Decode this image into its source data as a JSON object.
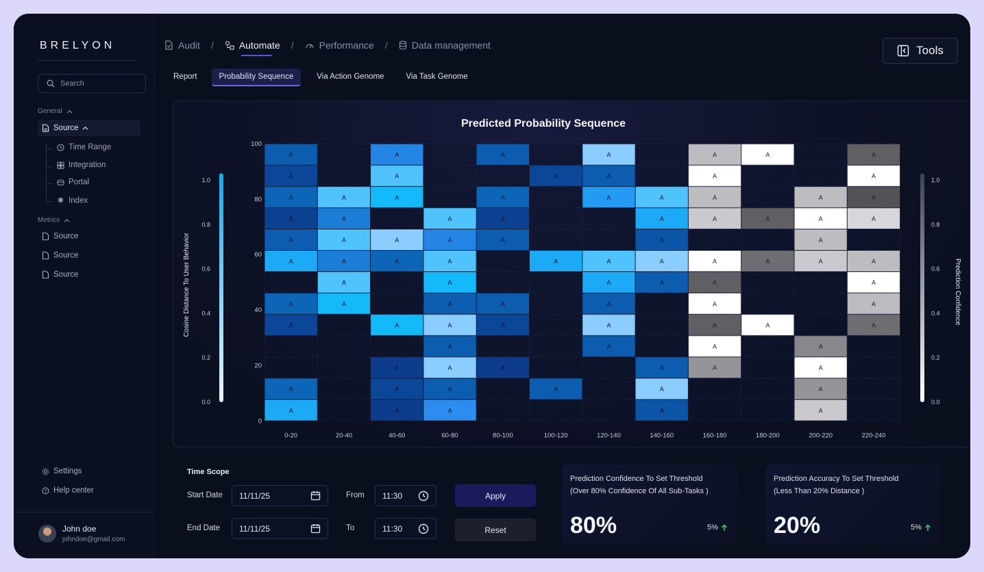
{
  "brand": "BRELYON",
  "search": {
    "placeholder": "Search"
  },
  "sidebar": {
    "general_label": "General",
    "source_label": "Source",
    "sub_items": [
      {
        "label": "Time Range",
        "icon": "clock-icon"
      },
      {
        "label": "Integration",
        "icon": "grid-icon"
      },
      {
        "label": "Portal",
        "icon": "portal-icon"
      },
      {
        "label": "Index",
        "icon": "asterisk-icon"
      }
    ],
    "metrics_label": "Metrics",
    "metric_items": [
      {
        "label": "Source"
      },
      {
        "label": "Source"
      },
      {
        "label": "Source"
      }
    ],
    "settings_label": "Settings",
    "help_label": "Help center"
  },
  "user": {
    "name": "John doe",
    "email": "johndoe@gmail.com"
  },
  "breadcrumbs": [
    {
      "label": "Audit",
      "icon": "file-icon"
    },
    {
      "label": "Automate",
      "icon": "flow-icon"
    },
    {
      "label": "Performance",
      "icon": "gauge-icon"
    },
    {
      "label": "Data management",
      "icon": "database-icon"
    }
  ],
  "tools_label": "Tools",
  "subtabs": [
    {
      "label": "Report"
    },
    {
      "label": "Probability Sequence"
    },
    {
      "label": "Via Action Genome"
    },
    {
      "label": "Via Task Genome"
    }
  ],
  "chart_data": {
    "type": "heatmap",
    "title": "Predicted Probability Sequence",
    "x_categories": [
      "0-20",
      "20-40",
      "40-60",
      "60-80",
      "80-100",
      "100-120",
      "120-140",
      "140-160",
      "160-180",
      "180-200",
      "200-220",
      "220-240"
    ],
    "y_ticks": [
      0,
      20,
      40,
      60,
      80,
      100
    ],
    "ylim": [
      0,
      100
    ],
    "rows": 13,
    "cell_label": "A",
    "left_colorbar": {
      "label": "Cosine Distance To User Behavior",
      "ticks": [
        "1.0",
        "0.8",
        "0.6",
        "0.4",
        "0.2",
        "0.0"
      ]
    },
    "right_colorbar": {
      "label": "Prediction Confidence",
      "ticks": [
        "1.0",
        "0.8",
        "0.6",
        "0.4",
        "0.2",
        "0.0"
      ]
    },
    "cells": [
      {
        "col": 0,
        "row": 0,
        "v": 0.45
      },
      {
        "col": 0,
        "row": 1,
        "v": 0.3
      },
      {
        "col": 0,
        "row": 2,
        "v": 0.5
      },
      {
        "col": 0,
        "row": 3,
        "v": 0.25
      },
      {
        "col": 0,
        "row": 4,
        "v": 0.45
      },
      {
        "col": 0,
        "row": 5,
        "v": 0.85
      },
      {
        "col": 0,
        "row": 7,
        "v": 0.5
      },
      {
        "col": 0,
        "row": 8,
        "v": 0.3
      },
      {
        "col": 0,
        "row": 11,
        "v": 0.5
      },
      {
        "col": 0,
        "row": 12,
        "v": 0.85
      },
      {
        "col": 1,
        "row": 2,
        "v": 0.95
      },
      {
        "col": 1,
        "row": 3,
        "v": 0.65
      },
      {
        "col": 1,
        "row": 4,
        "v": 0.95
      },
      {
        "col": 1,
        "row": 5,
        "v": 0.65
      },
      {
        "col": 1,
        "row": 6,
        "v": 0.95
      },
      {
        "col": 1,
        "row": 7,
        "v": 0.9
      },
      {
        "col": 2,
        "row": 0,
        "v": 0.7
      },
      {
        "col": 2,
        "row": 1,
        "v": 0.95
      },
      {
        "col": 2,
        "row": 2,
        "v": 0.9
      },
      {
        "col": 2,
        "row": 4,
        "v": 1.0
      },
      {
        "col": 2,
        "row": 5,
        "v": 0.5
      },
      {
        "col": 2,
        "row": 8,
        "v": 0.9
      },
      {
        "col": 2,
        "row": 10,
        "v": 0.2
      },
      {
        "col": 2,
        "row": 11,
        "v": 0.3
      },
      {
        "col": 2,
        "row": 12,
        "v": 0.2
      },
      {
        "col": 3,
        "row": 3,
        "v": 0.95
      },
      {
        "col": 3,
        "row": 4,
        "v": 0.7
      },
      {
        "col": 3,
        "row": 5,
        "v": 0.95
      },
      {
        "col": 3,
        "row": 6,
        "v": 0.9
      },
      {
        "col": 3,
        "row": 7,
        "v": 0.45
      },
      {
        "col": 3,
        "row": 8,
        "v": 1.0
      },
      {
        "col": 3,
        "row": 9,
        "v": 0.45
      },
      {
        "col": 3,
        "row": 10,
        "v": 1.0
      },
      {
        "col": 3,
        "row": 11,
        "v": 0.45
      },
      {
        "col": 3,
        "row": 12,
        "v": 0.75
      },
      {
        "col": 4,
        "row": 0,
        "v": 0.45
      },
      {
        "col": 4,
        "row": 2,
        "v": 0.5
      },
      {
        "col": 4,
        "row": 3,
        "v": 0.25
      },
      {
        "col": 4,
        "row": 4,
        "v": 0.45
      },
      {
        "col": 4,
        "row": 7,
        "v": 0.45
      },
      {
        "col": 4,
        "row": 8,
        "v": 0.3
      },
      {
        "col": 4,
        "row": 10,
        "v": 0.2
      },
      {
        "col": 5,
        "row": 1,
        "v": 0.3
      },
      {
        "col": 5,
        "row": 5,
        "v": 0.85
      },
      {
        "col": 5,
        "row": 11,
        "v": 0.45
      },
      {
        "col": 6,
        "row": 0,
        "v": 1.0
      },
      {
        "col": 6,
        "row": 1,
        "v": 0.45
      },
      {
        "col": 6,
        "row": 2,
        "v": 0.8
      },
      {
        "col": 6,
        "row": 5,
        "v": 0.95
      },
      {
        "col": 6,
        "row": 6,
        "v": 0.85
      },
      {
        "col": 6,
        "row": 7,
        "v": 0.45
      },
      {
        "col": 6,
        "row": 8,
        "v": 1.0
      },
      {
        "col": 6,
        "row": 9,
        "v": 0.45
      },
      {
        "col": 7,
        "row": 2,
        "v": 0.95
      },
      {
        "col": 7,
        "row": 3,
        "v": 0.85
      },
      {
        "col": 7,
        "row": 4,
        "v": 0.4
      },
      {
        "col": 7,
        "row": 5,
        "v": 1.0
      },
      {
        "col": 7,
        "row": 6,
        "v": 0.45
      },
      {
        "col": 7,
        "row": 10,
        "v": 0.45
      },
      {
        "col": 7,
        "row": 11,
        "v": 1.0
      },
      {
        "col": 7,
        "row": 12,
        "v": 0.4
      }
    ],
    "gray_cells": [
      {
        "col": 8,
        "row": 0,
        "v": 0.75
      },
      {
        "col": 8,
        "row": 1,
        "v": 1.0
      },
      {
        "col": 8,
        "row": 2,
        "v": 0.75
      },
      {
        "col": 8,
        "row": 3,
        "v": 0.8
      },
      {
        "col": 8,
        "row": 5,
        "v": 1.0
      },
      {
        "col": 8,
        "row": 6,
        "v": 0.4
      },
      {
        "col": 8,
        "row": 7,
        "v": 1.0
      },
      {
        "col": 8,
        "row": 8,
        "v": 0.4
      },
      {
        "col": 8,
        "row": 9,
        "v": 1.0
      },
      {
        "col": 8,
        "row": 10,
        "v": 0.6
      },
      {
        "col": 9,
        "row": 0,
        "v": 1.0
      },
      {
        "col": 9,
        "row": 3,
        "v": 0.4
      },
      {
        "col": 9,
        "row": 5,
        "v": 0.45
      },
      {
        "col": 9,
        "row": 8,
        "v": 1.0
      },
      {
        "col": 10,
        "row": 2,
        "v": 0.75
      },
      {
        "col": 10,
        "row": 3,
        "v": 1.0
      },
      {
        "col": 10,
        "row": 4,
        "v": 0.75
      },
      {
        "col": 10,
        "row": 5,
        "v": 0.8
      },
      {
        "col": 10,
        "row": 9,
        "v": 0.55
      },
      {
        "col": 10,
        "row": 10,
        "v": 1.0
      },
      {
        "col": 10,
        "row": 11,
        "v": 0.6
      },
      {
        "col": 10,
        "row": 12,
        "v": 0.8
      },
      {
        "col": 11,
        "row": 0,
        "v": 0.4
      },
      {
        "col": 11,
        "row": 1,
        "v": 1.0
      },
      {
        "col": 11,
        "row": 2,
        "v": 0.35
      },
      {
        "col": 11,
        "row": 3,
        "v": 0.85
      },
      {
        "col": 11,
        "row": 5,
        "v": 0.75
      },
      {
        "col": 11,
        "row": 6,
        "v": 1.0
      },
      {
        "col": 11,
        "row": 7,
        "v": 0.75
      },
      {
        "col": 11,
        "row": 8,
        "v": 0.45
      }
    ]
  },
  "time_scope": {
    "title": "Time Scope",
    "start_label": "Start Date",
    "start_date": "11/11/25",
    "end_label": "End Date",
    "end_date": "11/11/25",
    "from_label": "From",
    "from_time": "11:30",
    "to_label": "To",
    "to_time": "11:30",
    "apply_label": "Apply",
    "reset_label": "Reset"
  },
  "cards": [
    {
      "line1": "Prediction Confidence To Set Threshold",
      "line2": "(Over 80% Confidence Of All Sub-Tasks )",
      "value": "80%",
      "delta": "5%"
    },
    {
      "line1": "Prediction Accuracy To Set Threshold",
      "line2": "(Less Than 20% Distance )",
      "value": "20%",
      "delta": "5%"
    }
  ],
  "colors": {
    "accent": "#5a53e0",
    "apply_bg": "#1a1a5c",
    "up": "#3ed06a"
  }
}
